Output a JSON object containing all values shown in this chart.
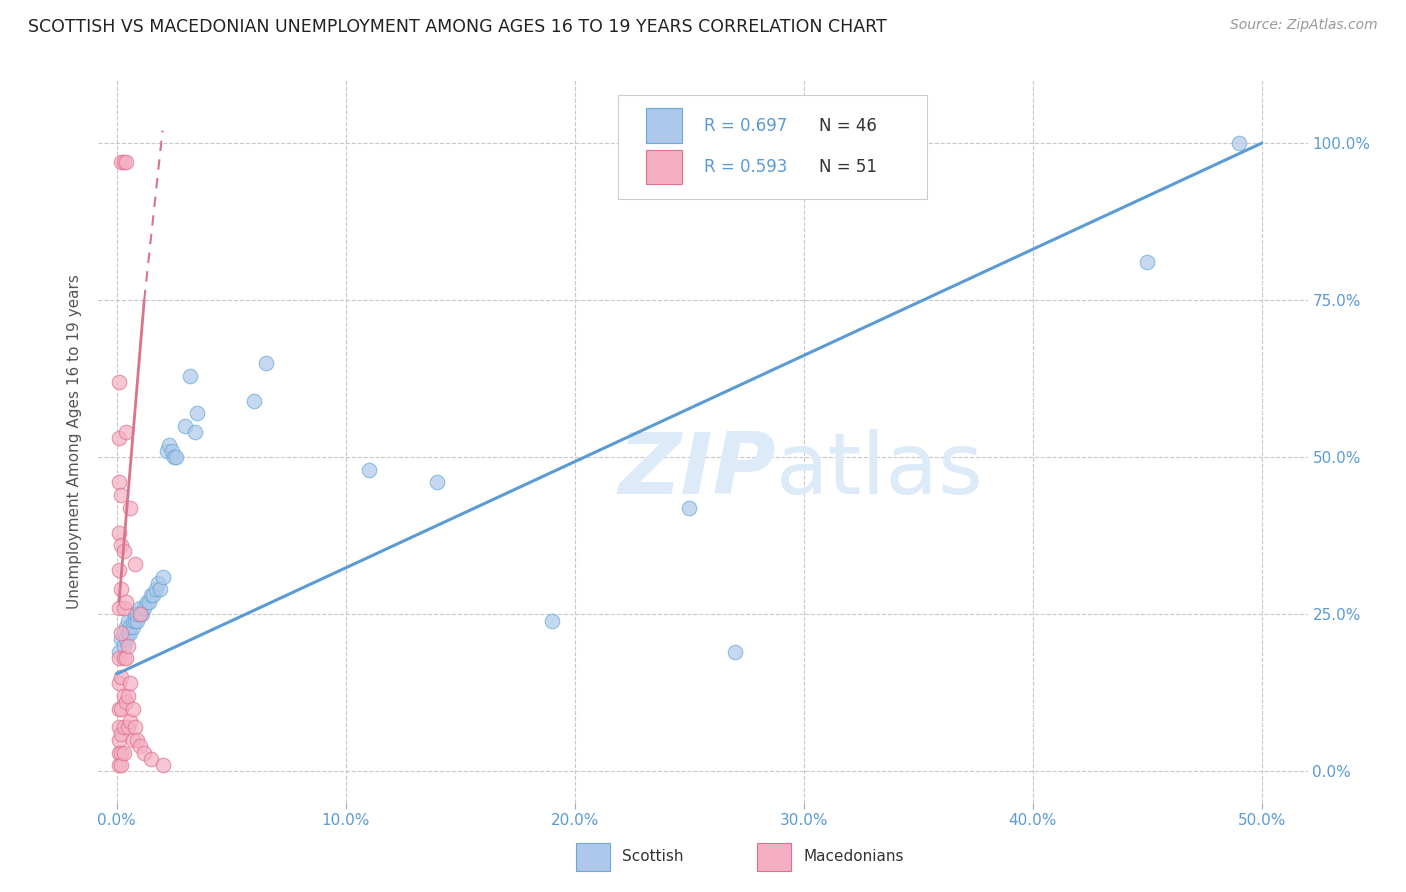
{
  "title": "SCOTTISH VS MACEDONIAN UNEMPLOYMENT AMONG AGES 16 TO 19 YEARS CORRELATION CHART",
  "source": "Source: ZipAtlas.com",
  "ylabel": "Unemployment Among Ages 16 to 19 years",
  "legend_scottish_r": "R = 0.697",
  "legend_scottish_n": "N = 46",
  "legend_macedonian_r": "R = 0.593",
  "legend_macedonian_n": "N = 51",
  "scottish_color": "#adc8ea",
  "macedonian_color": "#f4afc4",
  "scottish_edge_color": "#6aaad4",
  "macedonian_edge_color": "#e0708c",
  "scottish_line_color": "#5b9bd5",
  "macedonian_line_color": "#d9748a",
  "background_color": "#ffffff",
  "grid_color": "#c8c8c8",
  "title_color": "#333333",
  "right_tick_color": "#5b9bd5",
  "bottom_tick_color": "#5b9bd5",
  "scottish_points": [
    [
      0.001,
      0.19
    ],
    [
      0.002,
      0.21
    ],
    [
      0.003,
      0.2
    ],
    [
      0.003,
      0.22
    ],
    [
      0.004,
      0.21
    ],
    [
      0.004,
      0.23
    ],
    [
      0.005,
      0.22
    ],
    [
      0.005,
      0.24
    ],
    [
      0.006,
      0.22
    ],
    [
      0.006,
      0.23
    ],
    [
      0.007,
      0.23
    ],
    [
      0.007,
      0.24
    ],
    [
      0.008,
      0.24
    ],
    [
      0.008,
      0.25
    ],
    [
      0.009,
      0.24
    ],
    [
      0.009,
      0.25
    ],
    [
      0.01,
      0.25
    ],
    [
      0.01,
      0.26
    ],
    [
      0.011,
      0.25
    ],
    [
      0.012,
      0.26
    ],
    [
      0.013,
      0.27
    ],
    [
      0.014,
      0.27
    ],
    [
      0.015,
      0.28
    ],
    [
      0.016,
      0.28
    ],
    [
      0.017,
      0.29
    ],
    [
      0.018,
      0.3
    ],
    [
      0.019,
      0.29
    ],
    [
      0.02,
      0.31
    ],
    [
      0.022,
      0.51
    ],
    [
      0.023,
      0.52
    ],
    [
      0.024,
      0.51
    ],
    [
      0.025,
      0.5
    ],
    [
      0.026,
      0.5
    ],
    [
      0.03,
      0.55
    ],
    [
      0.032,
      0.63
    ],
    [
      0.034,
      0.54
    ],
    [
      0.035,
      0.57
    ],
    [
      0.06,
      0.59
    ],
    [
      0.065,
      0.65
    ],
    [
      0.11,
      0.48
    ],
    [
      0.14,
      0.46
    ],
    [
      0.19,
      0.24
    ],
    [
      0.25,
      0.42
    ],
    [
      0.27,
      0.19
    ],
    [
      0.45,
      0.81
    ],
    [
      0.49,
      1.0
    ]
  ],
  "macedonian_points": [
    [
      0.001,
      0.62
    ],
    [
      0.002,
      0.97
    ],
    [
      0.003,
      0.97
    ],
    [
      0.004,
      0.97
    ],
    [
      0.001,
      0.53
    ],
    [
      0.001,
      0.46
    ],
    [
      0.001,
      0.38
    ],
    [
      0.001,
      0.32
    ],
    [
      0.001,
      0.26
    ],
    [
      0.001,
      0.18
    ],
    [
      0.001,
      0.14
    ],
    [
      0.001,
      0.1
    ],
    [
      0.001,
      0.07
    ],
    [
      0.001,
      0.05
    ],
    [
      0.001,
      0.03
    ],
    [
      0.001,
      0.01
    ],
    [
      0.002,
      0.44
    ],
    [
      0.002,
      0.36
    ],
    [
      0.002,
      0.29
    ],
    [
      0.002,
      0.22
    ],
    [
      0.002,
      0.15
    ],
    [
      0.002,
      0.1
    ],
    [
      0.002,
      0.06
    ],
    [
      0.002,
      0.03
    ],
    [
      0.002,
      0.01
    ],
    [
      0.003,
      0.35
    ],
    [
      0.003,
      0.26
    ],
    [
      0.003,
      0.18
    ],
    [
      0.003,
      0.12
    ],
    [
      0.003,
      0.07
    ],
    [
      0.003,
      0.03
    ],
    [
      0.004,
      0.27
    ],
    [
      0.004,
      0.18
    ],
    [
      0.004,
      0.11
    ],
    [
      0.005,
      0.2
    ],
    [
      0.005,
      0.12
    ],
    [
      0.005,
      0.07
    ],
    [
      0.006,
      0.14
    ],
    [
      0.006,
      0.08
    ],
    [
      0.007,
      0.1
    ],
    [
      0.007,
      0.05
    ],
    [
      0.008,
      0.07
    ],
    [
      0.009,
      0.05
    ],
    [
      0.01,
      0.04
    ],
    [
      0.012,
      0.03
    ],
    [
      0.015,
      0.02
    ],
    [
      0.02,
      0.01
    ],
    [
      0.004,
      0.54
    ],
    [
      0.006,
      0.42
    ],
    [
      0.008,
      0.33
    ],
    [
      0.01,
      0.25
    ]
  ],
  "scottish_line": [
    [
      0.0,
      0.155
    ],
    [
      0.5,
      1.0
    ]
  ],
  "macedonian_line_solid": [
    [
      0.001,
      0.27
    ],
    [
      0.012,
      0.75
    ]
  ],
  "macedonian_line_dashed": [
    [
      0.012,
      0.75
    ],
    [
      0.02,
      1.02
    ]
  ],
  "xlim": [
    -0.008,
    0.52
  ],
  "ylim": [
    -0.05,
    1.1
  ],
  "xaxis_ticks": [
    0.0,
    0.1,
    0.2,
    0.3,
    0.4,
    0.5
  ],
  "xaxis_tick_labels": [
    "0.0%",
    "10.0%",
    "20.0%",
    "30.0%",
    "40.0%",
    "50.0%"
  ],
  "yaxis_ticks": [
    0.0,
    0.25,
    0.5,
    0.75,
    1.0
  ],
  "yaxis_tick_labels_right": [
    "0.0%",
    "25.0%",
    "50.0%",
    "75.0%",
    "100.0%"
  ],
  "scatter_size": 110,
  "scatter_alpha": 0.7,
  "scatter_linewidth": 0.8
}
